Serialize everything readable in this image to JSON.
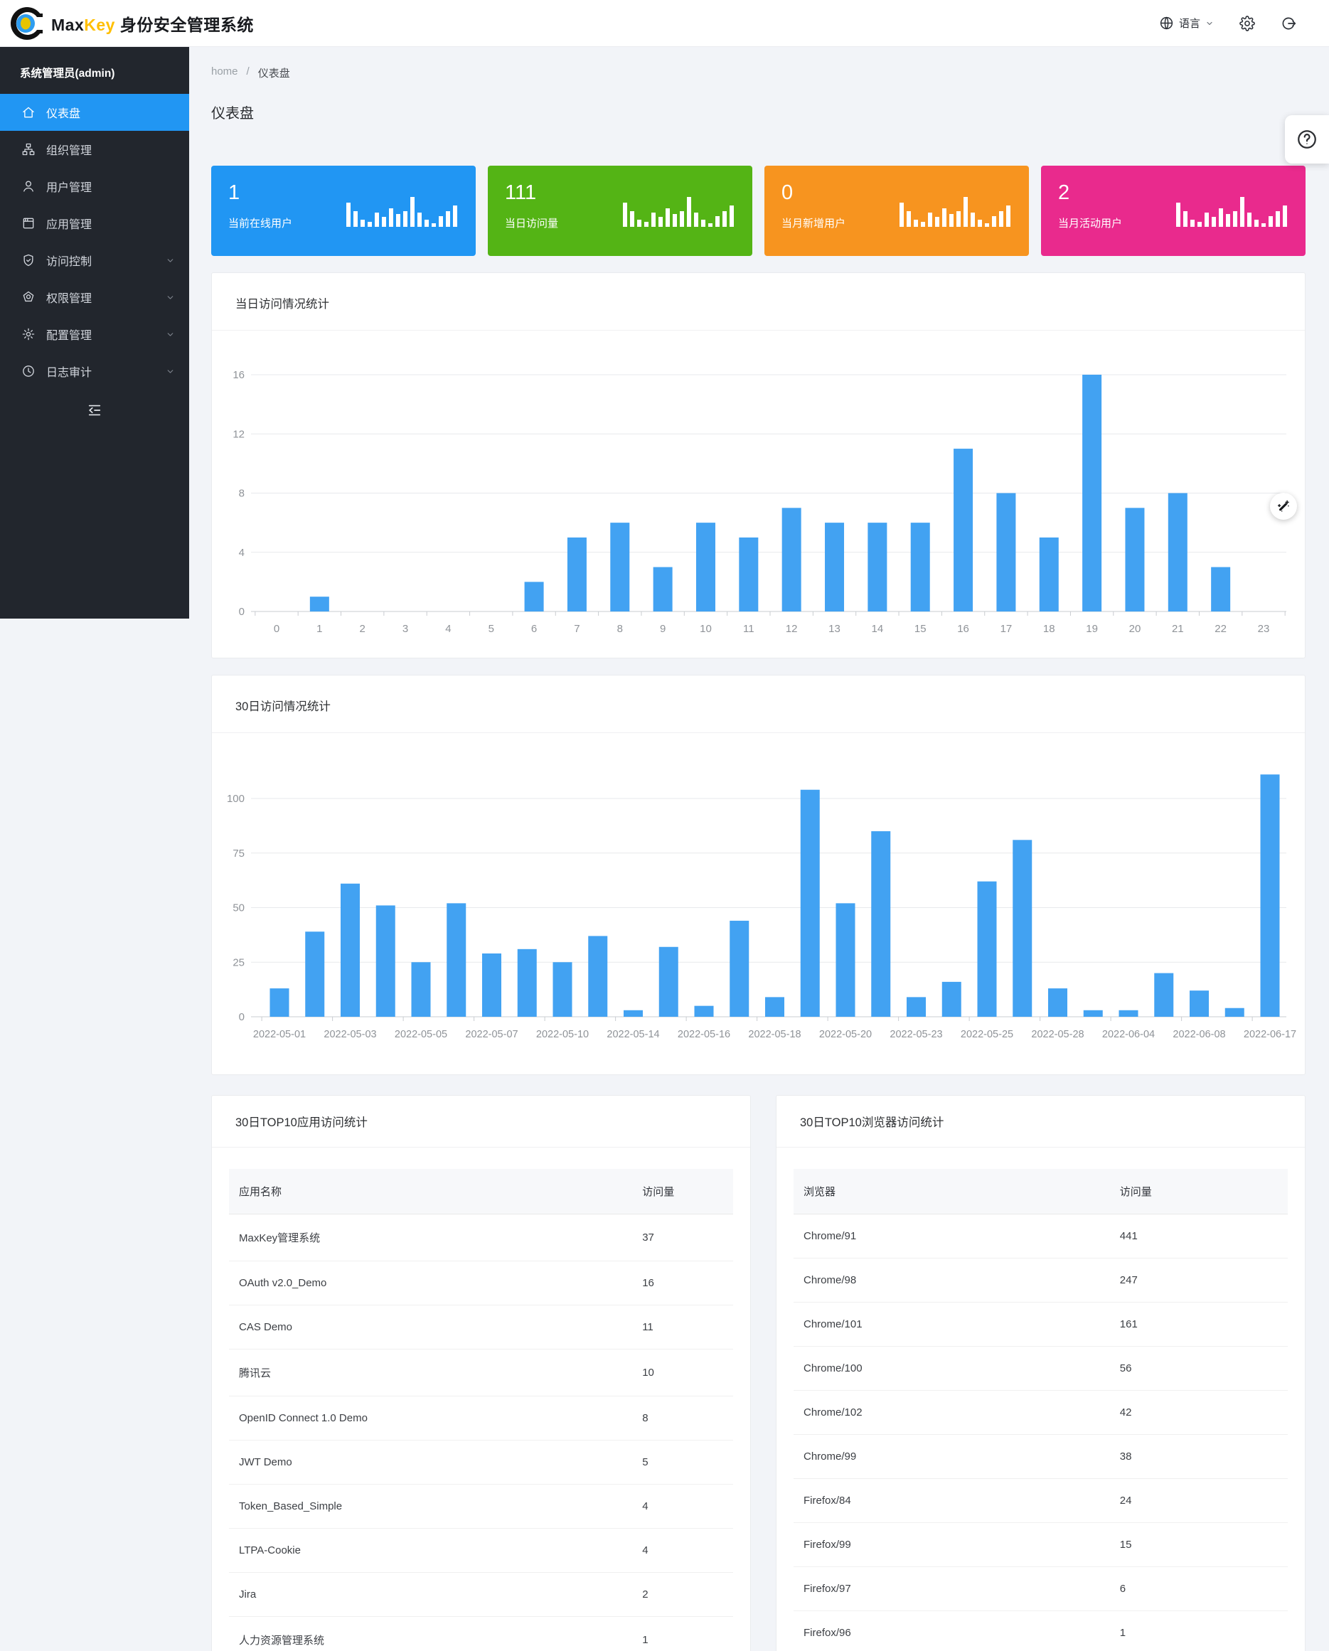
{
  "navbar": {
    "brand": {
      "max": "Max",
      "key": "Key",
      "suffix": " 身份安全管理系统"
    },
    "language": {
      "label": "语言"
    }
  },
  "sidebar": {
    "user_title": "系统管理员(admin)",
    "items": [
      {
        "label": "仪表盘",
        "icon": "home-icon",
        "active": true,
        "expandable": false
      },
      {
        "label": "组织管理",
        "icon": "org-icon",
        "active": false,
        "expandable": false
      },
      {
        "label": "用户管理",
        "icon": "user-icon",
        "active": false,
        "expandable": false
      },
      {
        "label": "应用管理",
        "icon": "app-icon",
        "active": false,
        "expandable": false
      },
      {
        "label": "访问控制",
        "icon": "shield-check-icon",
        "active": false,
        "expandable": true
      },
      {
        "label": "权限管理",
        "icon": "badge-icon",
        "active": false,
        "expandable": true
      },
      {
        "label": "配置管理",
        "icon": "gear-icon",
        "active": false,
        "expandable": true
      },
      {
        "label": "日志审计",
        "icon": "clock-icon",
        "active": false,
        "expandable": true
      }
    ]
  },
  "breadcrumb": {
    "home": "home",
    "separator": "/",
    "current": "仪表盘"
  },
  "page_title": "仪表盘",
  "stat_cards": [
    {
      "value": "1",
      "label": "当前在线用户",
      "color": "#2196f3"
    },
    {
      "value": "111",
      "label": "当日访问量",
      "color": "#54b415"
    },
    {
      "value": "0",
      "label": "当月新增用户",
      "color": "#f7941f"
    },
    {
      "value": "2",
      "label": "当月活动用户",
      "color": "#e92a8d"
    }
  ],
  "chart_data": [
    {
      "type": "bar",
      "title": "当日访问情况统计",
      "categories": [
        "0",
        "1",
        "2",
        "3",
        "4",
        "5",
        "6",
        "7",
        "8",
        "9",
        "10",
        "11",
        "12",
        "13",
        "14",
        "15",
        "16",
        "17",
        "18",
        "19",
        "20",
        "21",
        "22",
        "23"
      ],
      "values": [
        0,
        1,
        0,
        0,
        0,
        0,
        2,
        5,
        6,
        3,
        6,
        5,
        7,
        6,
        6,
        6,
        11,
        8,
        5,
        16,
        7,
        8,
        3,
        0
      ],
      "xlabel": "",
      "ylabel": "",
      "ylim": [
        0,
        16
      ],
      "yticks": [
        0,
        4,
        8,
        12,
        16
      ],
      "grid": true,
      "legend": "none",
      "bar_color": "#42a2f2"
    },
    {
      "type": "bar",
      "title": "30日访问情况统计",
      "values": [
        13,
        39,
        61,
        51,
        25,
        52,
        29,
        31,
        25,
        37,
        3,
        32,
        5,
        44,
        9,
        104,
        52,
        85,
        9,
        16,
        62,
        81,
        13,
        3,
        3,
        20,
        12,
        4,
        111
      ],
      "tick_labels": [
        "2022-05-01",
        "2022-05-03",
        "2022-05-05",
        "2022-05-07",
        "2022-05-10",
        "2022-05-14",
        "2022-05-16",
        "2022-05-18",
        "2022-05-20",
        "2022-05-23",
        "2022-05-25",
        "2022-05-28",
        "2022-06-04",
        "2022-06-08",
        "2022-06-17"
      ],
      "tick_every": 2,
      "xlabel": "",
      "ylabel": "",
      "ylim": [
        0,
        115
      ],
      "yticks": [
        0,
        25,
        50,
        75,
        100
      ],
      "grid": true,
      "legend": "none",
      "bar_color": "#42a2f2"
    }
  ],
  "tables": [
    {
      "title": "30日TOP10应用访问统计",
      "columns": [
        "应用名称",
        "访问量"
      ],
      "rows": [
        [
          "MaxKey管理系统",
          "37"
        ],
        [
          "OAuth v2.0_Demo",
          "16"
        ],
        [
          "CAS Demo",
          "11"
        ],
        [
          "腾讯云",
          "10"
        ],
        [
          "OpenID Connect 1.0 Demo",
          "8"
        ],
        [
          "JWT Demo",
          "5"
        ],
        [
          "Token_Based_Simple",
          "4"
        ],
        [
          "LTPA-Cookie",
          "4"
        ],
        [
          "Jira",
          "2"
        ],
        [
          "人力资源管理系统",
          "1"
        ]
      ]
    },
    {
      "title": "30日TOP10浏览器访问统计",
      "columns": [
        "浏览器",
        "访问量"
      ],
      "rows": [
        [
          "Chrome/91",
          "441"
        ],
        [
          "Chrome/98",
          "247"
        ],
        [
          "Chrome/101",
          "161"
        ],
        [
          "Chrome/100",
          "56"
        ],
        [
          "Chrome/102",
          "42"
        ],
        [
          "Chrome/99",
          "38"
        ],
        [
          "Firefox/84",
          "24"
        ],
        [
          "Firefox/99",
          "15"
        ],
        [
          "Firefox/97",
          "6"
        ],
        [
          "Firefox/96",
          "1"
        ]
      ]
    }
  ],
  "floating": {
    "help_glyph": "?"
  },
  "colors": {
    "sidebar_bg": "#22262d",
    "active_item": "#2196f3",
    "page_bg": "#f2f4f8",
    "bar_blue": "#42a2f2"
  }
}
